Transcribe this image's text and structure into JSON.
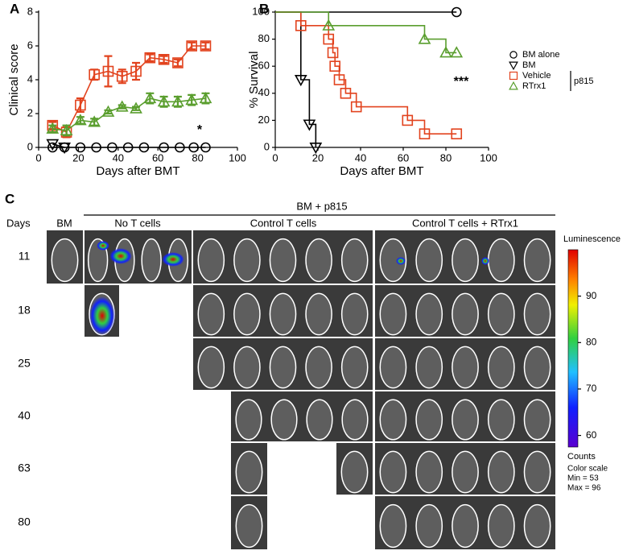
{
  "chart_data": [
    {
      "type": "line",
      "panel": "A",
      "ylabel": "Clinical score",
      "xlabel": "Days after BMT",
      "xlim": [
        0,
        100
      ],
      "xticks": [
        0,
        20,
        40,
        60,
        80,
        100
      ],
      "ylim": [
        0,
        8
      ],
      "yticks": [
        0,
        2,
        4,
        6,
        8
      ],
      "annotation": "*",
      "series": [
        {
          "name": "BM alone",
          "color": "#000000",
          "marker": "circle",
          "x": [
            7,
            13,
            21,
            29,
            37,
            45,
            53,
            63,
            71,
            78,
            84
          ],
          "values": [
            0,
            0,
            0,
            0,
            0,
            0,
            0,
            0,
            0,
            0,
            0
          ]
        },
        {
          "name": "BM",
          "color": "#000000",
          "marker": "triangle-down",
          "x": [
            7,
            13
          ],
          "values": [
            0.2,
            0
          ]
        },
        {
          "name": "Vehicle",
          "color": "#e2431e",
          "marker": "square",
          "x": [
            7,
            14,
            21,
            28,
            35,
            42,
            49,
            56,
            63,
            70,
            77,
            84
          ],
          "values": [
            1.3,
            0.9,
            2.5,
            4.3,
            4.5,
            4.2,
            4.5,
            5.3,
            5.2,
            5.0,
            6.0,
            6.0
          ],
          "errors": [
            0.2,
            0.3,
            0.4,
            0.3,
            0.9,
            0.4,
            0.5,
            0.2,
            0.2,
            0.2,
            0.2,
            0.2
          ]
        },
        {
          "name": "RTrx1",
          "color": "#5a9e2e",
          "marker": "triangle",
          "x": [
            7,
            14,
            21,
            28,
            35,
            42,
            49,
            56,
            63,
            70,
            77,
            84
          ],
          "values": [
            1.1,
            1.0,
            1.6,
            1.5,
            2.1,
            2.4,
            2.3,
            2.9,
            2.7,
            2.7,
            2.8,
            2.9
          ],
          "errors": [
            0.2,
            0.3,
            0.2,
            0.2,
            0.1,
            0.1,
            0.1,
            0.3,
            0.3,
            0.3,
            0.3,
            0.3
          ]
        }
      ]
    },
    {
      "type": "step",
      "panel": "B",
      "ylabel": "% Survival",
      "xlabel": "Days after BMT",
      "xlim": [
        0,
        100
      ],
      "xticks": [
        0,
        20,
        40,
        60,
        80,
        100
      ],
      "ylim": [
        0,
        100
      ],
      "yticks": [
        0,
        20,
        40,
        60,
        80,
        100
      ],
      "annotation": "***",
      "legend_bracket_label": "p815",
      "series": [
        {
          "name": "BM alone",
          "color": "#000000",
          "marker": "circle",
          "x": [
            0,
            85
          ],
          "values": [
            100,
            100
          ]
        },
        {
          "name": "BM",
          "color": "#000000",
          "marker": "triangle-down",
          "x": [
            0,
            12,
            16,
            19
          ],
          "values": [
            100,
            50,
            17,
            0
          ]
        },
        {
          "name": "Vehicle",
          "color": "#e2431e",
          "marker": "square",
          "x": [
            0,
            12,
            25,
            27,
            28,
            30,
            33,
            38,
            62,
            70,
            85
          ],
          "values": [
            100,
            90,
            80,
            70,
            60,
            50,
            40,
            30,
            20,
            10,
            10
          ]
        },
        {
          "name": "RTrx1",
          "color": "#5a9e2e",
          "marker": "triangle",
          "x": [
            0,
            25,
            70,
            80,
            85
          ],
          "values": [
            100,
            90,
            80,
            70,
            70
          ]
        }
      ]
    }
  ],
  "panel_c": {
    "panel": "C",
    "group_title": "BM + p815",
    "days_header": "Days",
    "columns": [
      "BM",
      "No T cells",
      "Control T cells",
      "Control T cells + RTrx1"
    ],
    "days": [
      "11",
      "18",
      "25",
      "40",
      "63",
      "80"
    ],
    "colorbar": {
      "label": "Luminescence",
      "lim": [
        57.5,
        100
      ],
      "ticks": [
        60,
        70,
        80,
        90
      ],
      "unit": "Counts",
      "notes": [
        "Color scale",
        "Min = 53",
        "Max = 96"
      ]
    }
  }
}
